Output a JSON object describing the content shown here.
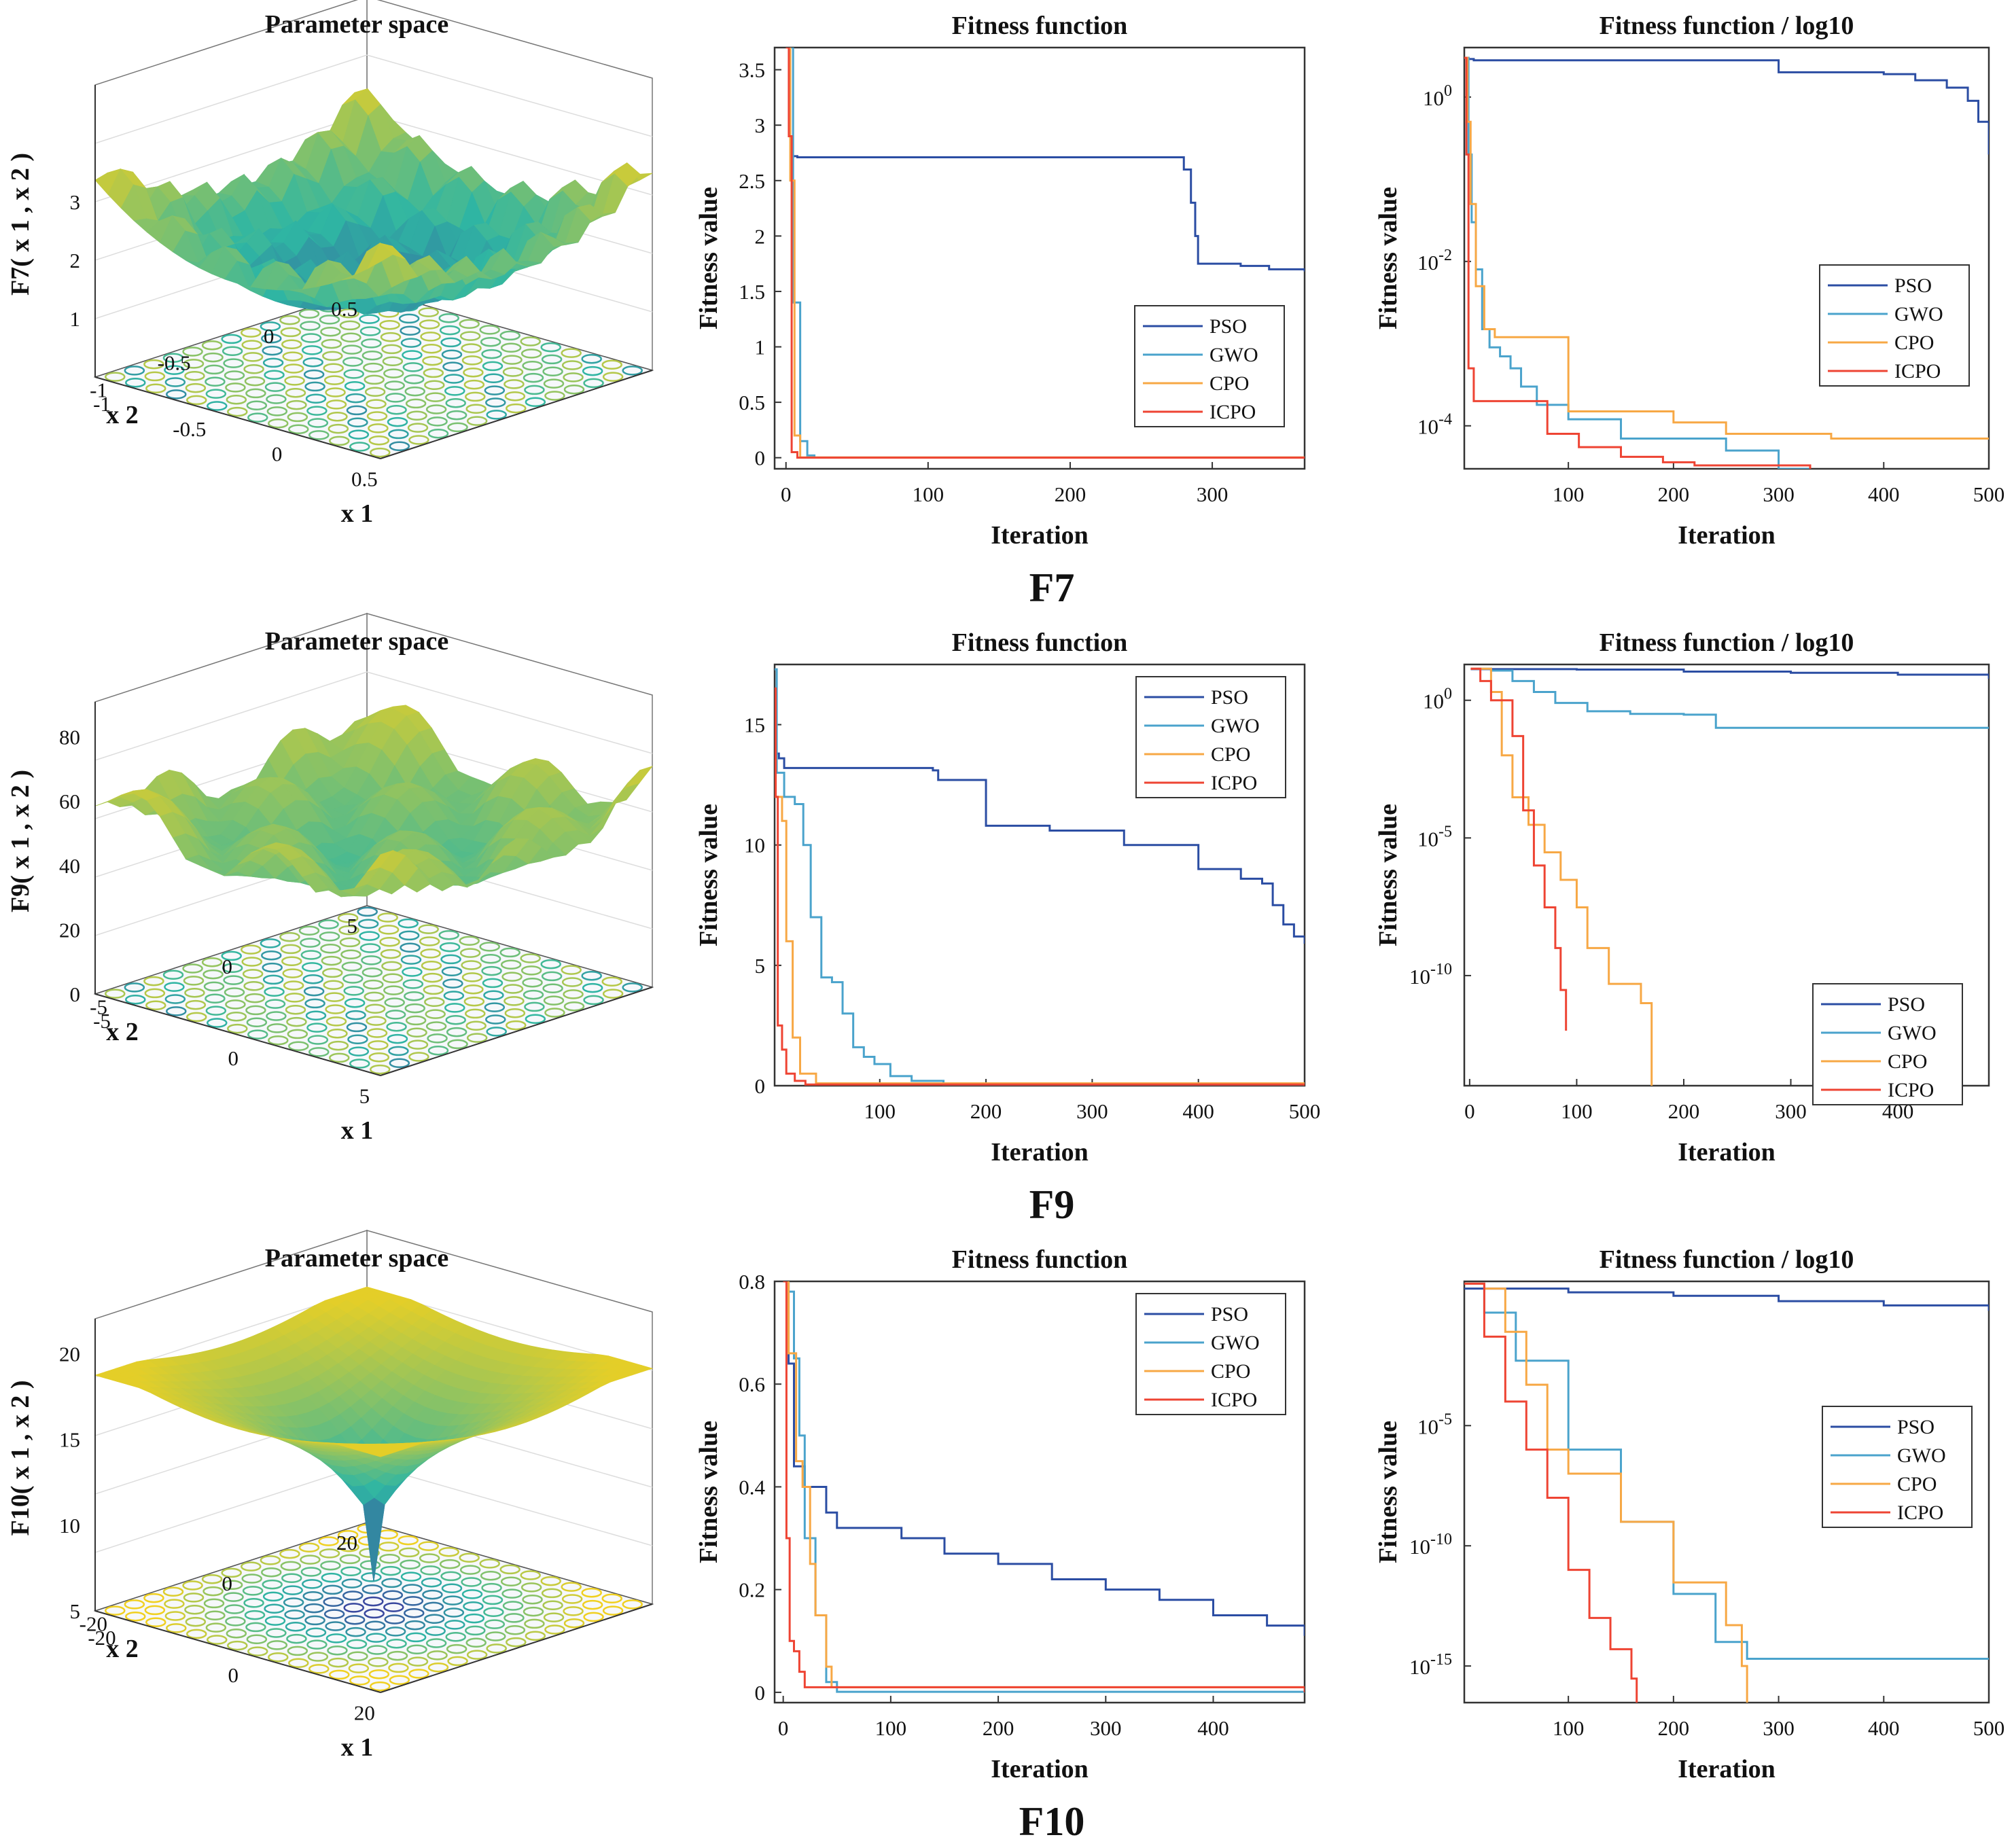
{
  "colors": {
    "PSO": "#2b4da3",
    "GWO": "#4aa3cc",
    "CPO": "#f7a845",
    "ICPO": "#ee4433",
    "axis": "#333333",
    "surface_low": "#3b2f9e",
    "surface_mid": "#2fb6a3",
    "surface_high": "#f0d020"
  },
  "blocks": [
    {
      "label": "F7",
      "surface": {
        "title": "Parameter space",
        "zlabel": "F7( x 1 , x 2 )",
        "xlabel": "x 1",
        "ylabel": "x 2",
        "zticks": [
          "1",
          "2",
          "3"
        ],
        "x1ticks": [
          "-1",
          "-0.5",
          "0",
          "0.5"
        ],
        "x2ticks": [
          "0.5",
          "0",
          "-0.5",
          "-1"
        ]
      },
      "linear": {
        "title": "Fitness function",
        "xlabel": "Iteration",
        "ylabel": "Fitness value",
        "xticks": [
          "0",
          "100",
          "200",
          "300"
        ],
        "yticks": [
          "0",
          "0.5",
          "1",
          "1.5",
          "2",
          "2.5",
          "3",
          "3.5"
        ],
        "legend": [
          "PSO",
          "GWO",
          "CPO",
          "ICPO"
        ]
      },
      "log": {
        "title": "Fitness function / log10",
        "xlabel": "Iteration",
        "ylabel": "Fitness value",
        "xticks": [
          "100",
          "200",
          "300",
          "400",
          "500"
        ],
        "yticks": [
          {
            "base": "10",
            "exp": "0"
          },
          {
            "base": "10",
            "exp": "-2"
          },
          {
            "base": "10",
            "exp": "-4"
          }
        ],
        "legend": [
          "PSO",
          "GWO",
          "CPO",
          "ICPO"
        ]
      }
    },
    {
      "label": "F9",
      "surface": {
        "title": "Parameter space",
        "zlabel": "F9( x 1 , x 2 )",
        "xlabel": "x 1",
        "ylabel": "x 2",
        "zticks": [
          "0",
          "20",
          "40",
          "60",
          "80"
        ],
        "x1ticks": [
          "-5",
          "0",
          "5"
        ],
        "x2ticks": [
          "5",
          "0",
          "-5"
        ]
      },
      "linear": {
        "title": "Fitness function",
        "xlabel": "Iteration",
        "ylabel": "Fitness value",
        "xticks": [
          "100",
          "200",
          "300",
          "400",
          "500"
        ],
        "yticks": [
          "0",
          "5",
          "10",
          "15"
        ],
        "legend": [
          "PSO",
          "GWO",
          "CPO",
          "ICPO"
        ]
      },
      "log": {
        "title": "Fitness function / log10",
        "xlabel": "Iteration",
        "ylabel": "Fitness value",
        "xticks": [
          "0",
          "100",
          "200",
          "300",
          "400"
        ],
        "yticks": [
          {
            "base": "10",
            "exp": "0"
          },
          {
            "base": "10",
            "exp": "-5"
          },
          {
            "base": "10",
            "exp": "-10"
          }
        ],
        "legend": [
          "PSO",
          "GWO",
          "CPO",
          "ICPO"
        ]
      }
    },
    {
      "label": "F10",
      "surface": {
        "title": "Parameter space",
        "zlabel": "F10( x 1 , x 2 )",
        "xlabel": "x 1",
        "ylabel": "x 2",
        "zticks": [
          "5",
          "10",
          "15",
          "20"
        ],
        "x1ticks": [
          "-20",
          "0",
          "20"
        ],
        "x2ticks": [
          "20",
          "0",
          "-20"
        ]
      },
      "linear": {
        "title": "Fitness function",
        "xlabel": "Iteration",
        "ylabel": "Fitness value",
        "xticks": [
          "0",
          "100",
          "200",
          "300",
          "400"
        ],
        "yticks": [
          "0",
          "0.2",
          "0.4",
          "0.6",
          "0.8"
        ],
        "legend": [
          "PSO",
          "GWO",
          "CPO",
          "ICPO"
        ]
      },
      "log": {
        "title": "Fitness function / log10",
        "xlabel": "Iteration",
        "ylabel": "Fitness value",
        "xticks": [
          "100",
          "200",
          "300",
          "400",
          "500"
        ],
        "yticks": [
          {
            "base": "10",
            "exp": "-5"
          },
          {
            "base": "10",
            "exp": "-10"
          },
          {
            "base": "10",
            "exp": "-15"
          }
        ],
        "legend": [
          "PSO",
          "GWO",
          "CPO",
          "ICPO"
        ]
      }
    }
  ],
  "chart_data": [
    {
      "panel": "F7 fitness",
      "type": "line",
      "xlim": [
        -8,
        365
      ],
      "ylim": [
        -0.1,
        3.7
      ],
      "series": [
        {
          "name": "PSO",
          "x": [
            0,
            3,
            4,
            8,
            270,
            280,
            285,
            288,
            290,
            295,
            320,
            340,
            365
          ],
          "y": [
            3.7,
            2.85,
            2.72,
            2.71,
            2.71,
            2.6,
            2.3,
            2.0,
            1.75,
            1.75,
            1.73,
            1.7,
            1.68
          ]
        },
        {
          "name": "GWO",
          "x": [
            0,
            5,
            10,
            15,
            20,
            365
          ],
          "y": [
            3.7,
            1.4,
            0.15,
            0.02,
            0.002,
            0.001
          ]
        },
        {
          "name": "CPO",
          "x": [
            0,
            3,
            6,
            10,
            365
          ],
          "y": [
            3.7,
            2.5,
            0.2,
            0.003,
            0.0001
          ]
        },
        {
          "name": "ICPO",
          "x": [
            0,
            2,
            4,
            8,
            365
          ],
          "y": [
            3.7,
            2.9,
            0.05,
            0.0005,
            3e-05
          ]
        }
      ]
    },
    {
      "panel": "F7 fitness log10",
      "type": "line",
      "scale": "log",
      "xlim": [
        1,
        500
      ],
      "ylim": [
        3e-05,
        4
      ],
      "series": [
        {
          "name": "PSO",
          "x": [
            1,
            5,
            10,
            290,
            300,
            400,
            430,
            460,
            480,
            490,
            500
          ],
          "y": [
            3,
            2.9,
            2.8,
            2.8,
            2.0,
            1.9,
            1.6,
            1.3,
            0.9,
            0.5,
            0.2
          ]
        },
        {
          "name": "GWO",
          "x": [
            1,
            5,
            8,
            12,
            18,
            25,
            35,
            45,
            55,
            70,
            100,
            150,
            250,
            300,
            330,
            470,
            500
          ],
          "y": [
            3,
            0.2,
            0.03,
            0.008,
            0.0015,
            0.0009,
            0.0007,
            0.0005,
            0.0003,
            0.00018,
            0.00012,
            7e-05,
            5e-05,
            3e-05,
            2.8e-05,
            2.5e-05,
            2.5e-05
          ]
        },
        {
          "name": "CPO",
          "x": [
            1,
            4,
            7,
            12,
            20,
            30,
            90,
            100,
            200,
            250,
            350,
            500
          ],
          "y": [
            3,
            0.5,
            0.05,
            0.005,
            0.0015,
            0.0012,
            0.0012,
            0.00015,
            0.00011,
            8e-05,
            7e-05,
            7e-05
          ]
        },
        {
          "name": "ICPO",
          "x": [
            1,
            3,
            5,
            10,
            70,
            80,
            110,
            150,
            190,
            220,
            330,
            440,
            500
          ],
          "y": [
            3,
            0.2,
            0.0005,
            0.0002,
            0.0002,
            8e-05,
            5.5e-05,
            4.2e-05,
            3.6e-05,
            3.3e-05,
            2.9e-05,
            2.6e-05,
            2.6e-05
          ]
        }
      ]
    },
    {
      "panel": "F9 fitness",
      "type": "line",
      "xlim": [
        1,
        500
      ],
      "ylim": [
        0,
        17.5
      ],
      "series": [
        {
          "name": "PSO",
          "x": [
            1,
            2,
            5,
            10,
            150,
            155,
            190,
            200,
            260,
            330,
            400,
            440,
            460,
            470,
            480,
            490,
            500
          ],
          "y": [
            13.9,
            13.8,
            13.6,
            13.2,
            13.1,
            12.7,
            12.7,
            10.8,
            10.6,
            10.0,
            9.0,
            8.6,
            8.4,
            7.5,
            6.7,
            6.2,
            5.9
          ]
        },
        {
          "name": "GWO",
          "x": [
            1,
            3,
            10,
            20,
            28,
            35,
            45,
            55,
            65,
            75,
            85,
            95,
            110,
            130,
            160,
            500
          ],
          "y": [
            17.3,
            13.0,
            12.0,
            11.7,
            10.0,
            7.0,
            4.5,
            4.3,
            3.0,
            1.6,
            1.2,
            0.9,
            0.4,
            0.2,
            0.05,
            0.01
          ]
        },
        {
          "name": "CPO",
          "x": [
            1,
            2,
            8,
            12,
            18,
            25,
            40,
            500
          ],
          "y": [
            13.5,
            12.0,
            11.0,
            6.0,
            2.0,
            0.5,
            0.1,
            0.0
          ]
        },
        {
          "name": "ICPO",
          "x": [
            1,
            2,
            4,
            8,
            12,
            20,
            30,
            500
          ],
          "y": [
            16.5,
            12.0,
            2.5,
            1.5,
            0.5,
            0.2,
            0.05,
            0.0
          ]
        }
      ]
    },
    {
      "panel": "F9 fitness log10",
      "type": "line",
      "scale": "log",
      "xlim": [
        -5,
        485
      ],
      "ylim": [
        1e-14,
        20
      ],
      "series": [
        {
          "name": "PSO",
          "x": [
            1,
            100,
            200,
            300,
            400,
            485
          ],
          "y": [
            13.5,
            13.1,
            11.0,
            10.0,
            8.5,
            6.0
          ]
        },
        {
          "name": "GWO",
          "x": [
            1,
            20,
            40,
            60,
            80,
            110,
            150,
            200,
            230,
            485
          ],
          "y": [
            14,
            12,
            5,
            2,
            0.8,
            0.4,
            0.32,
            0.3,
            0.1,
            0.1
          ]
        },
        {
          "name": "CPO",
          "x": [
            1,
            20,
            30,
            40,
            55,
            70,
            85,
            100,
            110,
            130,
            160,
            170
          ],
          "y": [
            14,
            2,
            0.01,
            0.0003,
            3e-05,
            3e-06,
            3e-07,
            3e-08,
            1e-09,
            5e-11,
            1e-11,
            1e-14
          ]
        },
        {
          "name": "ICPO",
          "x": [
            1,
            10,
            20,
            40,
            50,
            60,
            70,
            80,
            85,
            90
          ],
          "y": [
            14,
            5,
            1,
            0.05,
            0.0001,
            1e-06,
            3e-08,
            1e-09,
            3e-11,
            1e-12
          ]
        }
      ]
    },
    {
      "panel": "F10 fitness",
      "type": "line",
      "xlim": [
        -8,
        485
      ],
      "ylim": [
        -0.02,
        0.8
      ],
      "series": [
        {
          "name": "PSO",
          "x": [
            0,
            5,
            10,
            20,
            40,
            50,
            90,
            110,
            150,
            200,
            250,
            300,
            350,
            400,
            450,
            485
          ],
          "y": [
            0.8,
            0.64,
            0.44,
            0.4,
            0.35,
            0.32,
            0.32,
            0.3,
            0.27,
            0.25,
            0.22,
            0.2,
            0.18,
            0.15,
            0.13,
            0.11
          ]
        },
        {
          "name": "GWO",
          "x": [
            0,
            5,
            10,
            15,
            20,
            30,
            40,
            50,
            485
          ],
          "y": [
            0.8,
            0.78,
            0.65,
            0.5,
            0.3,
            0.15,
            0.02,
            0.001,
            0.0
          ]
        },
        {
          "name": "CPO",
          "x": [
            0,
            5,
            12,
            18,
            25,
            30,
            40,
            45,
            485
          ],
          "y": [
            0.8,
            0.66,
            0.45,
            0.4,
            0.25,
            0.15,
            0.05,
            0.01,
            0.0
          ]
        },
        {
          "name": "ICPO",
          "x": [
            0,
            3,
            6,
            10,
            15,
            20,
            485
          ],
          "y": [
            0.8,
            0.3,
            0.1,
            0.08,
            0.04,
            0.01,
            0.0
          ]
        }
      ]
    },
    {
      "panel": "F10 fitness log10",
      "type": "line",
      "scale": "log",
      "xlim": [
        1,
        500
      ],
      "ylim": [
        3e-17,
        10
      ],
      "series": [
        {
          "name": "PSO",
          "x": [
            1,
            100,
            200,
            300,
            400,
            500
          ],
          "y": [
            5,
            3.5,
            2.5,
            1.5,
            1.0,
            0.6
          ]
        },
        {
          "name": "GWO",
          "x": [
            1,
            20,
            50,
            100,
            150,
            200,
            240,
            270,
            500
          ],
          "y": [
            8,
            0.5,
            0.005,
            1e-06,
            1e-09,
            1e-12,
            1e-14,
            2e-15,
            2e-15
          ]
        },
        {
          "name": "CPO",
          "x": [
            1,
            20,
            40,
            60,
            80,
            100,
            150,
            200,
            250,
            265,
            270
          ],
          "y": [
            8,
            5,
            0.08,
            0.0005,
            1e-06,
            1e-07,
            1e-09,
            3e-12,
            5e-14,
            1e-15,
            3e-17
          ]
        },
        {
          "name": "ICPO",
          "x": [
            1,
            20,
            40,
            60,
            80,
            100,
            120,
            140,
            160,
            165
          ],
          "y": [
            8,
            0.05,
            0.0001,
            1e-06,
            1e-08,
            1e-11,
            1e-13,
            5e-15,
            3e-16,
            3e-17
          ]
        }
      ]
    }
  ]
}
